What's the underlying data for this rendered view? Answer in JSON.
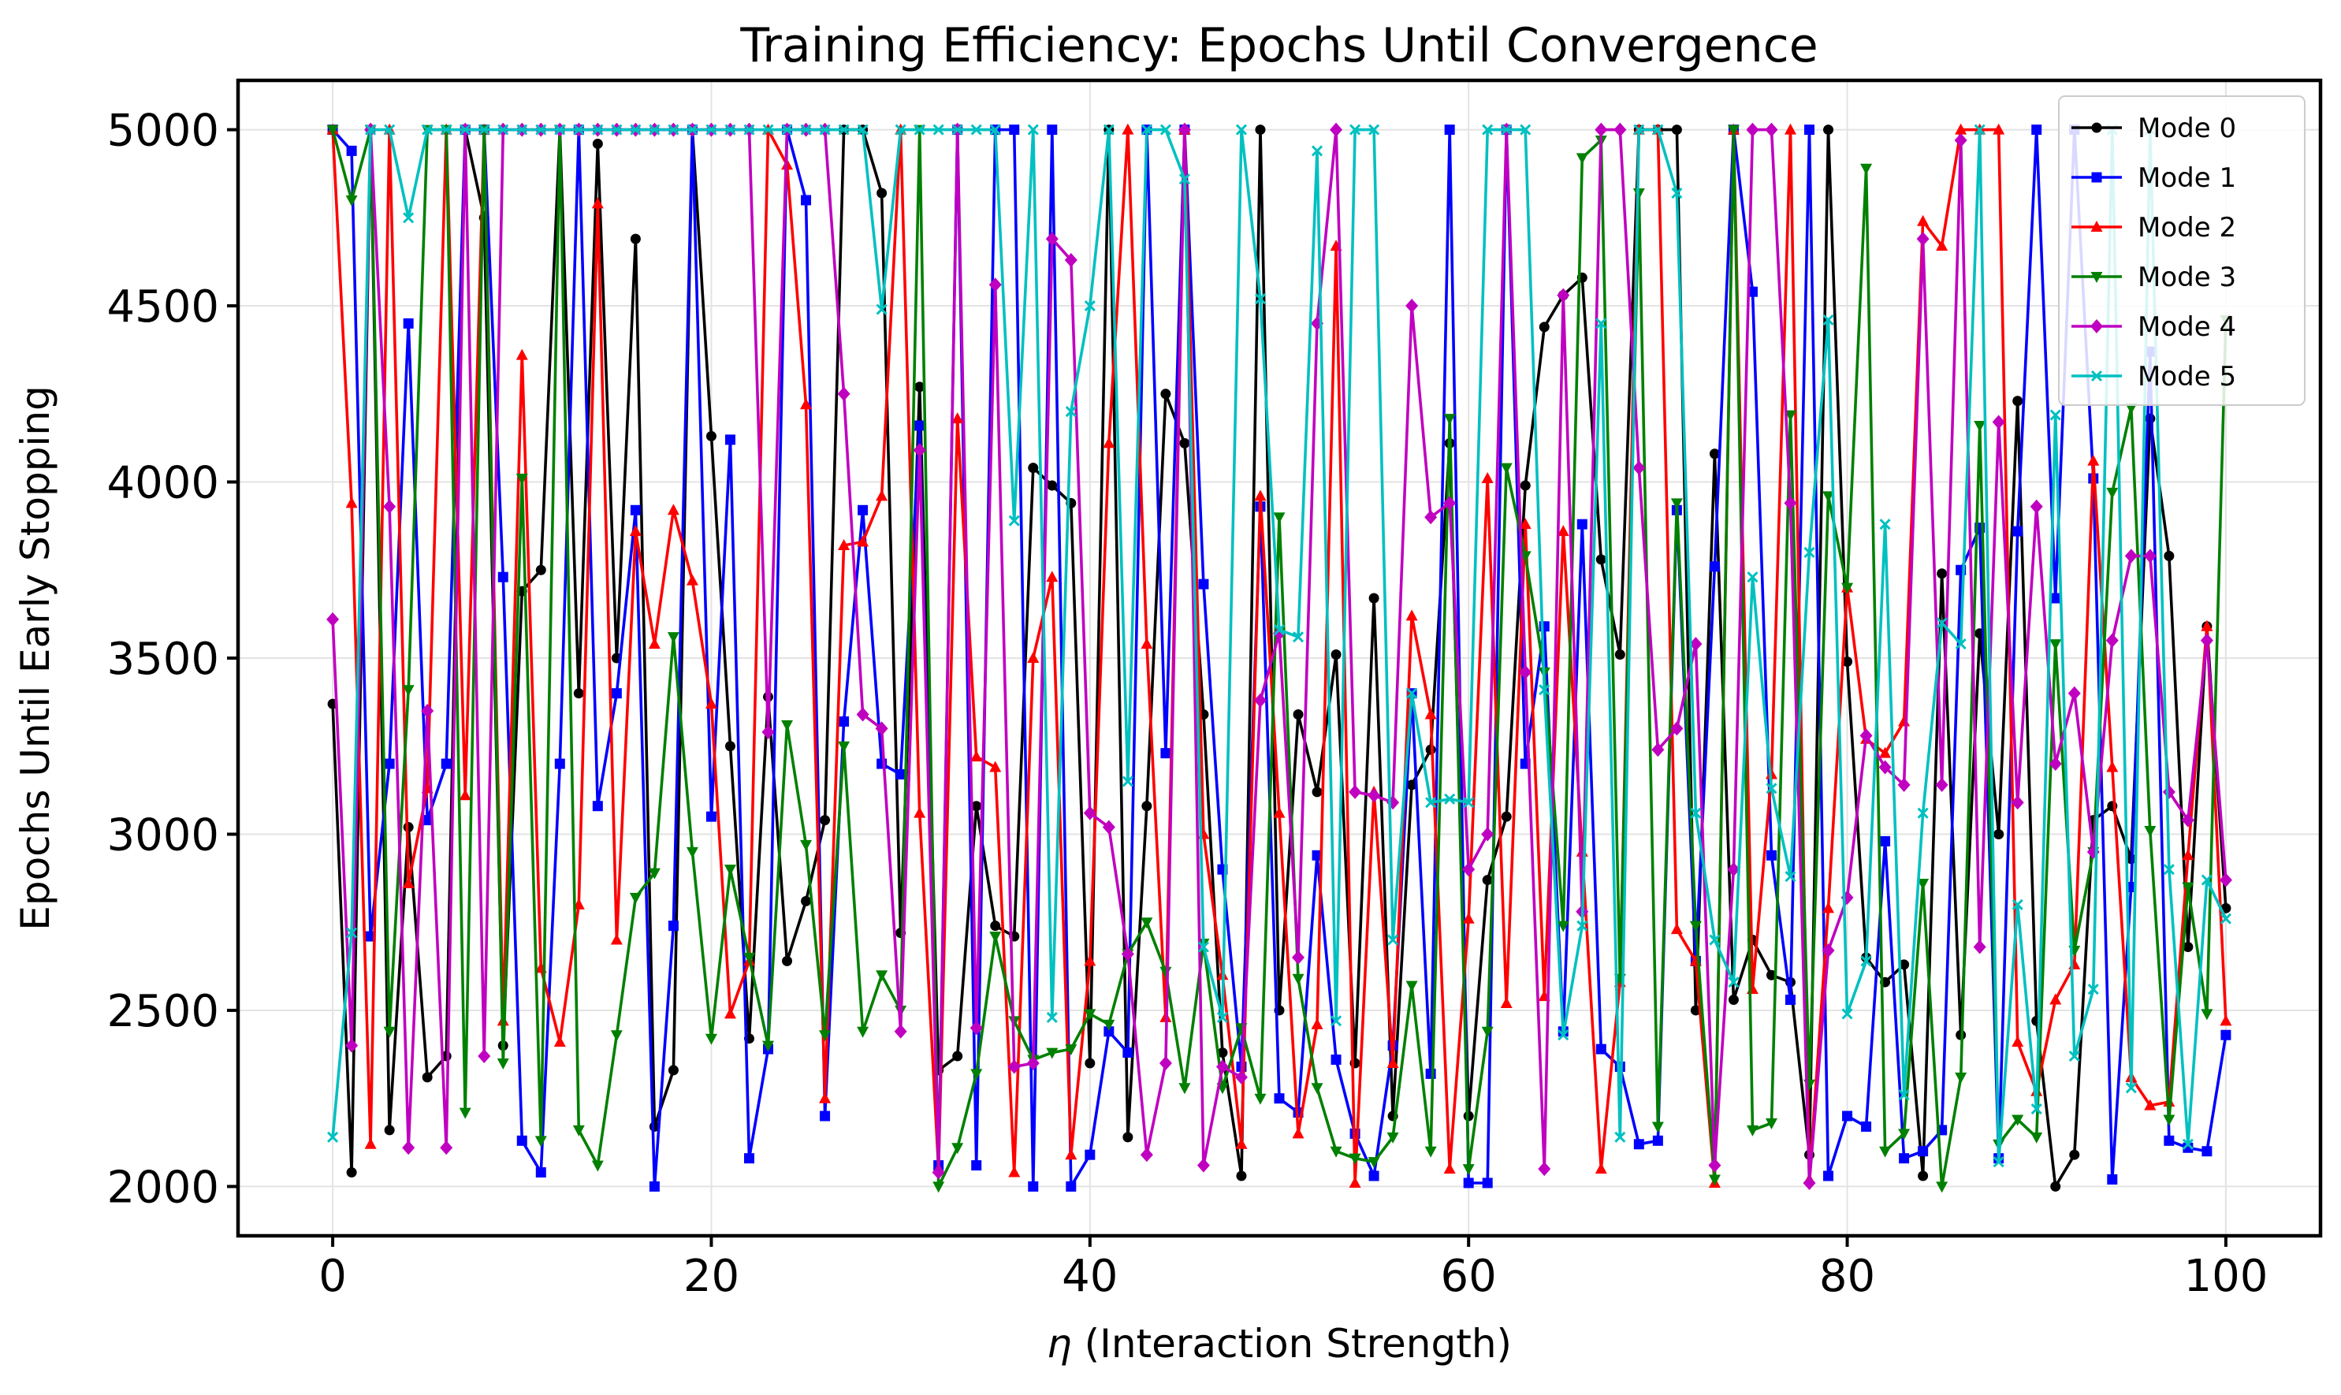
{
  "chart_data": {
    "type": "line",
    "title": "Training Efficiency: Epochs Until Convergence",
    "xlabel_symbol": "η",
    "xlabel_text": " (Interaction Strength)",
    "ylabel": "Epochs Until Early Stopping",
    "xlim": [
      -5,
      105
    ],
    "ylim": [
      1860,
      5140
    ],
    "xticks": [
      0,
      20,
      40,
      60,
      80,
      100
    ],
    "xtick_labels": [
      "0",
      "20",
      "40",
      "60",
      "80",
      "100"
    ],
    "yticks": [
      2000,
      2500,
      3000,
      3500,
      4000,
      4500,
      5000
    ],
    "ytick_labels": [
      "2000",
      "2500",
      "3000",
      "3500",
      "4000",
      "4500",
      "5000"
    ],
    "grid": true,
    "legend_position": "upper-right",
    "x": [
      0,
      1,
      2,
      3,
      4,
      5,
      6,
      7,
      8,
      9,
      10,
      11,
      12,
      13,
      14,
      15,
      16,
      17,
      18,
      19,
      20,
      21,
      22,
      23,
      24,
      25,
      26,
      27,
      28,
      29,
      30,
      31,
      32,
      33,
      34,
      35,
      36,
      37,
      38,
      39,
      40,
      41,
      42,
      43,
      44,
      45,
      46,
      47,
      48,
      49,
      50,
      51,
      52,
      53,
      54,
      55,
      56,
      57,
      58,
      59,
      60,
      61,
      62,
      63,
      64,
      65,
      66,
      67,
      68,
      69,
      70,
      71,
      72,
      73,
      74,
      75,
      76,
      77,
      78,
      79,
      80,
      81,
      82,
      83,
      84,
      85,
      86,
      87,
      88,
      89,
      90,
      91,
      92,
      93,
      94,
      95,
      96,
      97,
      98,
      99,
      100
    ],
    "series": [
      {
        "name": "Mode 0",
        "color": "#000000",
        "marker": "circle",
        "values": [
          3370,
          2040,
          5000,
          2160,
          3020,
          2310,
          2370,
          5000,
          4750,
          2400,
          3690,
          3750,
          5000,
          3400,
          4960,
          3500,
          4690,
          2170,
          2330,
          5000,
          4130,
          3250,
          2420,
          3390,
          2640,
          2810,
          3040,
          5000,
          5000,
          4820,
          2720,
          4270,
          2330,
          2370,
          3080,
          2740,
          2710,
          4040,
          3990,
          3940,
          2350,
          5000,
          2140,
          3080,
          4250,
          4110,
          3340,
          2380,
          2030,
          5000,
          2500,
          3340,
          3120,
          3510,
          2350,
          3670,
          2200,
          3140,
          3240,
          4110,
          2200,
          2870,
          3050,
          3990,
          4440,
          4530,
          4580,
          3780,
          3510,
          5000,
          5000,
          5000,
          2500,
          4080,
          2530,
          2700,
          2600,
          2580,
          2090,
          5000,
          3490,
          2650,
          2580,
          2630,
          2030,
          3740,
          2430,
          3570,
          3000,
          4230,
          2470,
          2000,
          2090,
          3040,
          3080,
          2930,
          4180,
          3790,
          2680,
          3590,
          2790
        ]
      },
      {
        "name": "Mode 1",
        "color": "#0000ff",
        "marker": "square",
        "values": [
          5000,
          4940,
          2710,
          3200,
          4450,
          3040,
          3200,
          5000,
          5000,
          3730,
          2130,
          2040,
          3200,
          5000,
          3080,
          3400,
          3920,
          2000,
          2740,
          5000,
          3050,
          4120,
          2080,
          2390,
          5000,
          4800,
          2200,
          3320,
          3920,
          3200,
          3170,
          4160,
          2060,
          5000,
          2060,
          5000,
          5000,
          2000,
          5000,
          2000,
          2090,
          2440,
          2380,
          5000,
          3230,
          5000,
          3710,
          2900,
          2340,
          3930,
          2250,
          2210,
          2940,
          2360,
          2150,
          2030,
          2400,
          3400,
          2320,
          5000,
          2010,
          2010,
          5000,
          3200,
          3590,
          2440,
          3880,
          2390,
          2340,
          2120,
          2130,
          3920,
          2640,
          3760,
          5000,
          4540,
          2940,
          2530,
          5000,
          2030,
          2200,
          2170,
          2980,
          2080,
          2100,
          2160,
          3750,
          3870,
          2080,
          3860,
          5000,
          3670,
          5000,
          4010,
          2020,
          2850,
          4370,
          2130,
          2110,
          2100,
          2430
        ]
      },
      {
        "name": "Mode 2",
        "color": "#ff0000",
        "marker": "triangle-up",
        "values": [
          5000,
          3940,
          2120,
          5000,
          2860,
          3130,
          5000,
          3110,
          5000,
          2470,
          4360,
          2620,
          2410,
          2800,
          4790,
          2700,
          3860,
          3540,
          3920,
          3720,
          3370,
          2490,
          2640,
          5000,
          4900,
          4220,
          2250,
          3820,
          3830,
          3960,
          5000,
          3060,
          2050,
          4180,
          3220,
          3190,
          2040,
          3500,
          3730,
          2090,
          2640,
          4110,
          5000,
          3540,
          2480,
          5000,
          3000,
          2600,
          2120,
          3960,
          3060,
          2150,
          2460,
          4670,
          2010,
          3120,
          2350,
          3620,
          3340,
          2050,
          2760,
          4010,
          2520,
          3880,
          2540,
          3860,
          2950,
          2050,
          2580,
          5000,
          5000,
          2730,
          2640,
          2010,
          5000,
          2560,
          3170,
          5000,
          2020,
          2790,
          3700,
          3270,
          3230,
          3320,
          4740,
          4670,
          5000,
          5000,
          5000,
          2410,
          2270,
          2530,
          2630,
          4060,
          3190,
          2310,
          2230,
          2240,
          2940,
          3590,
          2470
        ]
      },
      {
        "name": "Mode 3",
        "color": "#008000",
        "marker": "triangle-down",
        "values": [
          5000,
          4800,
          5000,
          2440,
          3410,
          5000,
          5000,
          2210,
          5000,
          2350,
          4010,
          2130,
          5000,
          2160,
          2060,
          2430,
          2820,
          2890,
          3560,
          2950,
          2420,
          2900,
          2650,
          2400,
          3310,
          2970,
          2430,
          3250,
          2440,
          2600,
          2500,
          5000,
          2000,
          2110,
          2320,
          2710,
          2470,
          2360,
          2380,
          2390,
          2490,
          2460,
          2660,
          2750,
          2610,
          2280,
          2690,
          2280,
          2450,
          2250,
          3900,
          2590,
          2280,
          2100,
          2080,
          2070,
          2140,
          2570,
          2100,
          4180,
          2050,
          2440,
          4040,
          3790,
          3460,
          2740,
          4920,
          4970,
          2590,
          4820,
          2170,
          3940,
          2740,
          2020,
          5000,
          2160,
          2180,
          4190,
          2290,
          3960,
          3700,
          4890,
          2100,
          2150,
          2860,
          2000,
          2310,
          4160,
          2120,
          2190,
          2140,
          3540,
          2670,
          2950,
          3970,
          4210,
          3010,
          2190,
          2850,
          2490,
          4460
        ]
      },
      {
        "name": "Mode 4",
        "color": "#c000c0",
        "marker": "diamond",
        "values": [
          3610,
          2400,
          5000,
          3930,
          2110,
          3350,
          2110,
          5000,
          2370,
          5000,
          5000,
          5000,
          5000,
          5000,
          5000,
          5000,
          5000,
          5000,
          5000,
          5000,
          5000,
          5000,
          5000,
          3290,
          5000,
          5000,
          5000,
          4250,
          3340,
          3300,
          2440,
          4090,
          2040,
          5000,
          2450,
          4560,
          2340,
          2350,
          4690,
          4630,
          3060,
          3020,
          2660,
          2090,
          2350,
          5000,
          2060,
          2340,
          2310,
          3380,
          3570,
          2650,
          4450,
          5000,
          3120,
          3110,
          3090,
          4500,
          3900,
          3940,
          2900,
          3000,
          5000,
          3460,
          2050,
          4530,
          2780,
          5000,
          5000,
          4040,
          3240,
          3300,
          3540,
          2060,
          2900,
          5000,
          5000,
          3940,
          2010,
          2670,
          2820,
          3280,
          3190,
          3140,
          4690,
          3140,
          4970,
          2680,
          4170,
          3090,
          3930,
          3200,
          3400,
          2950,
          3550,
          3790,
          3790,
          3120,
          3040,
          3550,
          2870
        ]
      },
      {
        "name": "Mode 5",
        "color": "#00c0c0",
        "marker": "x",
        "values": [
          2140,
          2720,
          5000,
          5000,
          4750,
          5000,
          5000,
          5000,
          5000,
          5000,
          5000,
          5000,
          5000,
          5000,
          5000,
          5000,
          5000,
          5000,
          5000,
          5000,
          5000,
          5000,
          5000,
          5000,
          5000,
          5000,
          5000,
          5000,
          5000,
          4490,
          5000,
          5000,
          5000,
          5000,
          5000,
          5000,
          3890,
          5000,
          2480,
          4200,
          4500,
          5000,
          3150,
          5000,
          5000,
          4860,
          2680,
          2480,
          5000,
          4520,
          3580,
          3560,
          4940,
          2470,
          5000,
          5000,
          2700,
          3400,
          3090,
          3100,
          3090,
          5000,
          5000,
          5000,
          3410,
          2430,
          2740,
          4450,
          2140,
          5000,
          5000,
          4820,
          3060,
          2700,
          2580,
          3730,
          3130,
          2880,
          3800,
          4460,
          2490,
          2640,
          3880,
          2260,
          3060,
          3600,
          3540,
          5000,
          2070,
          2800,
          2220,
          4190,
          2370,
          2560,
          5000,
          2280,
          5000,
          2900,
          2120,
          2870,
          2760
        ]
      }
    ]
  }
}
